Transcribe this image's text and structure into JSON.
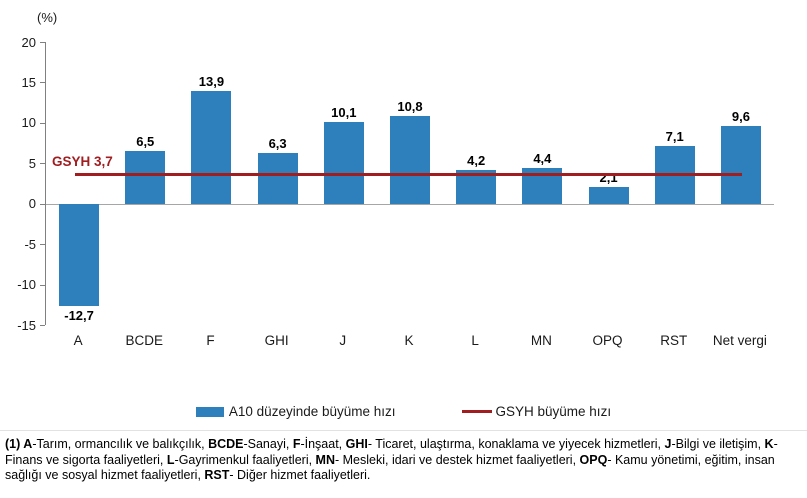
{
  "chart_data": {
    "type": "bar",
    "unit_label": "(%)",
    "categories": [
      "A",
      "BCDE",
      "F",
      "GHI",
      "J",
      "K",
      "L",
      "MN",
      "OPQ",
      "RST",
      "Net vergi"
    ],
    "values": [
      -12.7,
      6.5,
      13.9,
      6.3,
      10.1,
      10.8,
      4.2,
      4.4,
      2.1,
      7.1,
      9.6
    ],
    "value_labels": [
      "-12,7",
      "6,5",
      "13,9",
      "6,3",
      "10,1",
      "10,8",
      "4,2",
      "4,4",
      "2,1",
      "7,1",
      "9,6"
    ],
    "ylim": [
      -15,
      20
    ],
    "yticks": [
      20,
      15,
      10,
      5,
      0,
      -5,
      -10,
      -15
    ],
    "grid": "off",
    "reference_line": {
      "value": 3.7,
      "label": "GSYH 3,7"
    },
    "legend_position": "bottom-center",
    "legend": [
      {
        "label": "A10 düzeyinde büyüme hızı",
        "type": "bar"
      },
      {
        "label": "GSYH büyüme hızı",
        "type": "line"
      }
    ],
    "colors": {
      "bar": "#2e80bc",
      "reference_line": "#a01d20",
      "axis": "#808080",
      "zero_line": "#a6a6a6"
    }
  },
  "footnote": {
    "segments": [
      {
        "text": "(1) A",
        "bold": true
      },
      {
        "text": "-Tarım, ormancılık ve balıkçılık, ",
        "bold": false
      },
      {
        "text": "BCDE",
        "bold": true
      },
      {
        "text": "-Sanayi, ",
        "bold": false
      },
      {
        "text": "F",
        "bold": true
      },
      {
        "text": "-İnşaat, ",
        "bold": false
      },
      {
        "text": "GHI",
        "bold": true
      },
      {
        "text": "- Ticaret, ulaştırma, konaklama ve yiyecek hizmetleri, ",
        "bold": false
      },
      {
        "text": "J",
        "bold": true
      },
      {
        "text": "-Bilgi ve iletişim, ",
        "bold": false
      },
      {
        "text": "K",
        "bold": true
      },
      {
        "text": "-Finans ve sigorta faaliyetleri, ",
        "bold": false
      },
      {
        "text": "L",
        "bold": true
      },
      {
        "text": "-Gayrimenkul faaliyetleri, ",
        "bold": false
      },
      {
        "text": "MN",
        "bold": true
      },
      {
        "text": "- Mesleki, idari ve destek hizmet faaliyetleri, ",
        "bold": false
      },
      {
        "text": "OPQ",
        "bold": true
      },
      {
        "text": "- Kamu yönetimi, eğitim, insan sağlığı ve sosyal hizmet faaliyetleri, ",
        "bold": false
      },
      {
        "text": "RST",
        "bold": true
      },
      {
        "text": "- Diğer hizmet faaliyetleri.",
        "bold": false
      }
    ]
  }
}
